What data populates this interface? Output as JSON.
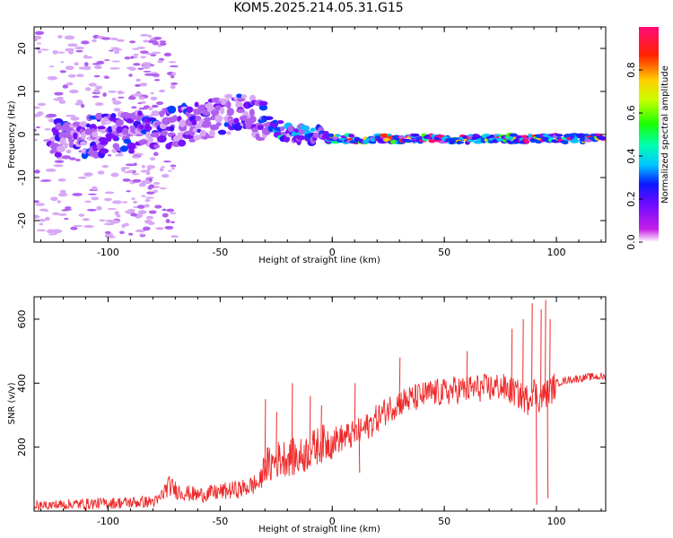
{
  "title": "KOM5.2025.214.05.31.G15",
  "chart_data": [
    {
      "type": "heatmap",
      "xlabel": "Height of straight line (km)",
      "ylabel": "Frequency (Hz)",
      "xlim": [
        -133,
        122
      ],
      "ylim": [
        -25,
        25
      ],
      "x_ticks": [
        "-100",
        "-50",
        "0",
        "50",
        "100"
      ],
      "y_ticks": [
        "-20",
        "-10",
        "0",
        "10",
        "20"
      ],
      "colorbar": {
        "label": "Normalized spectral amplitude",
        "range": [
          0,
          1
        ],
        "ticks": [
          "0.0",
          "0.2",
          "0.4",
          "0.6",
          "0.8"
        ],
        "colors": [
          "#ffffff",
          "#8a2be2",
          "#0000ff",
          "#00ffff",
          "#00ff00",
          "#ffff00",
          "#ff0000",
          "#ff1493"
        ]
      },
      "ridge": {
        "x": [
          -120,
          -100,
          -80,
          -70,
          -60,
          -50,
          -40,
          -30,
          -20,
          -10,
          0,
          10,
          20,
          40,
          60,
          80,
          100,
          122
        ],
        "y": [
          -1,
          0,
          1,
          2,
          3,
          4,
          5,
          3,
          0,
          0,
          -1,
          -1,
          -1,
          -1,
          -1,
          -1,
          -1,
          -1
        ]
      }
    },
    {
      "type": "line",
      "xlabel": "Height of straight line (km)",
      "ylabel": "SNR (v/v)",
      "xlim": [
        -133,
        122
      ],
      "ylim": [
        0,
        670
      ],
      "x_ticks": [
        "-100",
        "-50",
        "0",
        "50",
        "100"
      ],
      "y_ticks": [
        "200",
        "400",
        "600"
      ],
      "series": [
        {
          "color": "#ee2a2a",
          "x": [
            -133,
            -120,
            -100,
            -85,
            -78,
            -73,
            -68,
            -60,
            -50,
            -40,
            -32,
            -30,
            -28,
            -25,
            -20,
            -15,
            -10,
            -5,
            0,
            5,
            10,
            15,
            20,
            25,
            30,
            35,
            40,
            45,
            50,
            55,
            60,
            65,
            70,
            75,
            78,
            82,
            86,
            88,
            90,
            92,
            94,
            96,
            98,
            100,
            105,
            110,
            115,
            122
          ],
          "y": [
            15,
            20,
            25,
            28,
            30,
            80,
            60,
            50,
            60,
            70,
            90,
            150,
            140,
            160,
            170,
            165,
            190,
            210,
            220,
            230,
            240,
            260,
            290,
            320,
            340,
            350,
            360,
            370,
            370,
            380,
            380,
            385,
            385,
            390,
            380,
            370,
            350,
            360,
            380,
            350,
            360,
            370,
            380,
            400,
            410,
            415,
            420,
            420
          ]
        }
      ],
      "spikes": {
        "x": [
          -30,
          -25,
          -18,
          -10,
          -5,
          10,
          12,
          30,
          60,
          80,
          85,
          87,
          89,
          91,
          93,
          95,
          96,
          97
        ],
        "y": [
          350,
          310,
          400,
          360,
          330,
          400,
          120,
          480,
          500,
          570,
          600,
          300,
          650,
          20,
          630,
          660,
          40,
          600
        ]
      }
    }
  ]
}
